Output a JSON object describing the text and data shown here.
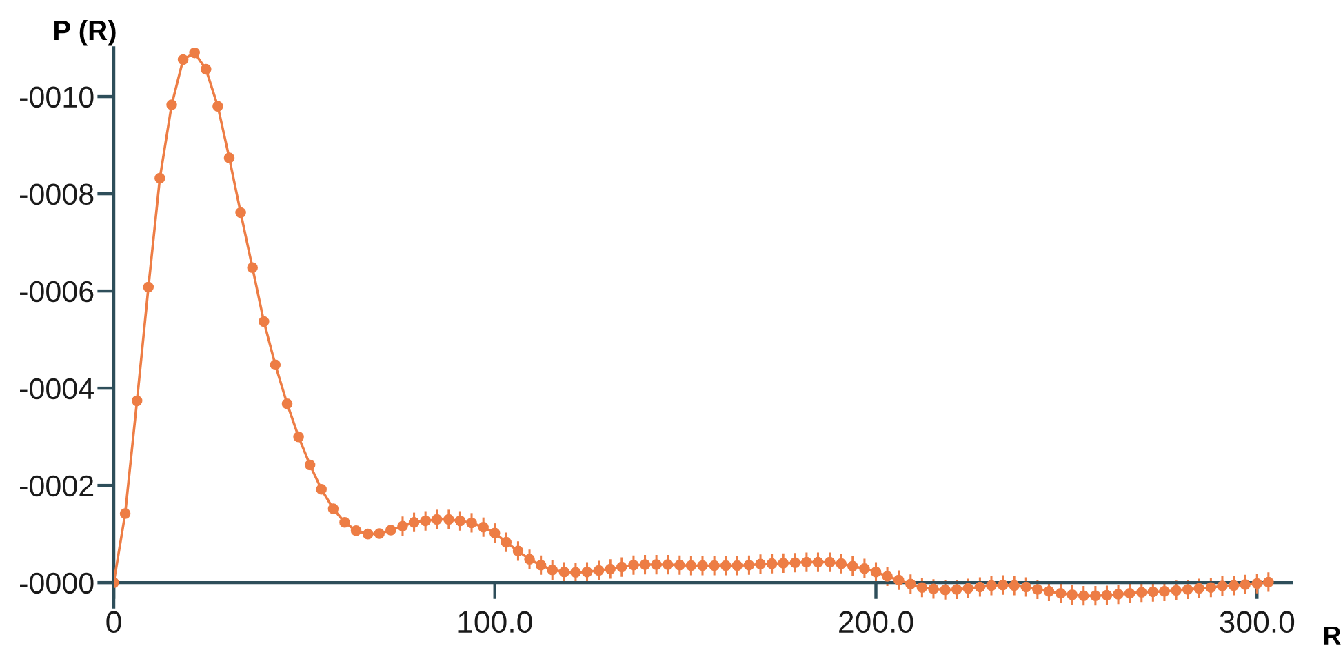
{
  "chart_data": {
    "type": "line",
    "xlabel": "R",
    "ylabel": "P (R)",
    "x": [
      0,
      3.0,
      6.1,
      9.1,
      12.1,
      15.2,
      18.2,
      21.2,
      24.2,
      27.3,
      30.3,
      33.3,
      36.4,
      39.4,
      42.4,
      45.5,
      48.5,
      51.5,
      54.5,
      57.6,
      60.6,
      63.6,
      66.7,
      69.7,
      72.7,
      75.8,
      78.8,
      81.8,
      84.8,
      87.9,
      90.9,
      93.9,
      97.0,
      100.0,
      103.0,
      106.1,
      109.1,
      112.1,
      115.1,
      118.2,
      121.2,
      124.2,
      127.3,
      130.3,
      133.3,
      136.4,
      139.4,
      142.4,
      145.4,
      148.5,
      151.5,
      154.5,
      157.6,
      160.6,
      163.6,
      166.7,
      169.7,
      172.7,
      175.7,
      178.8,
      181.8,
      184.8,
      187.9,
      190.9,
      193.9,
      197.0,
      200.0,
      203.0,
      206.0,
      209.1,
      212.1,
      215.1,
      218.2,
      221.2,
      224.2,
      227.3,
      230.3,
      233.3,
      236.3,
      239.4,
      242.4,
      245.4,
      248.5,
      251.5,
      254.5,
      257.6,
      260.6,
      263.6,
      266.6,
      269.7,
      272.7,
      275.7,
      278.8,
      281.8,
      284.8,
      287.9,
      290.9,
      293.9,
      296.9,
      300.0,
      303.0
    ],
    "series": [
      {
        "color": "#ed7d45",
        "values": [
          0,
          -1.42,
          -3.74,
          -6.08,
          -8.32,
          -9.83,
          -10.76,
          -10.9,
          -10.56,
          -9.8,
          -8.74,
          -7.61,
          -6.48,
          -5.37,
          -4.48,
          -3.68,
          -3.0,
          -2.42,
          -1.92,
          -1.52,
          -1.24,
          -1.07,
          -1.0,
          -1.01,
          -1.08,
          -1.16,
          -1.24,
          -1.27,
          -1.3,
          -1.3,
          -1.27,
          -1.23,
          -1.14,
          -1.02,
          -0.83,
          -0.65,
          -0.48,
          -0.36,
          -0.26,
          -0.22,
          -0.21,
          -0.22,
          -0.25,
          -0.28,
          -0.32,
          -0.36,
          -0.37,
          -0.37,
          -0.37,
          -0.36,
          -0.35,
          -0.35,
          -0.35,
          -0.35,
          -0.35,
          -0.36,
          -0.38,
          -0.39,
          -0.4,
          -0.41,
          -0.42,
          -0.42,
          -0.42,
          -0.39,
          -0.34,
          -0.29,
          -0.22,
          -0.13,
          -0.05,
          0.03,
          0.1,
          0.13,
          0.15,
          0.14,
          0.12,
          0.09,
          0.06,
          0.05,
          0.06,
          0.09,
          0.14,
          0.18,
          0.22,
          0.25,
          0.27,
          0.27,
          0.26,
          0.24,
          0.22,
          0.2,
          0.19,
          0.18,
          0.16,
          0.14,
          0.12,
          0.1,
          0.07,
          0.06,
          0.04,
          0.02,
          -0.01
        ],
        "errors": [
          null,
          null,
          null,
          null,
          null,
          null,
          null,
          null,
          null,
          null,
          null,
          null,
          null,
          null,
          null,
          null,
          null,
          null,
          null,
          null,
          null,
          0.1,
          0.1,
          0.1,
          0.1,
          0.2,
          0.2,
          0.2,
          0.2,
          0.2,
          0.2,
          0.2,
          0.2,
          0.2,
          0.2,
          0.2,
          0.2,
          0.2,
          0.2,
          0.2,
          0.2,
          0.2,
          0.2,
          0.2,
          0.2,
          0.2,
          0.2,
          0.2,
          0.2,
          0.2,
          0.2,
          0.2,
          0.2,
          0.2,
          0.2,
          0.2,
          0.2,
          0.2,
          0.2,
          0.2,
          0.2,
          0.2,
          0.2,
          0.2,
          0.2,
          0.2,
          0.2,
          0.2,
          0.2,
          0.2,
          0.2,
          0.2,
          0.2,
          0.2,
          0.2,
          0.2,
          0.2,
          0.2,
          0.2,
          0.2,
          0.2,
          0.2,
          0.2,
          0.2,
          0.2,
          0.2,
          0.2,
          0.2,
          0.2,
          0.2,
          0.2,
          0.2,
          0.2,
          0.2,
          0.2,
          0.2,
          0.2,
          0.2,
          0.2,
          0.2,
          0.2
        ]
      }
    ],
    "xlim": [
      0,
      309
    ],
    "ylim": [
      0.5,
      -11
    ],
    "xticks": [
      {
        "value": 0,
        "label": "0"
      },
      {
        "value": 100,
        "label": "100.0"
      },
      {
        "value": 200,
        "label": "200.0"
      },
      {
        "value": 300,
        "label": "300.0"
      }
    ],
    "yticks": [
      {
        "value": 0,
        "label": "-0000"
      },
      {
        "value": -2,
        "label": "-0002"
      },
      {
        "value": -4,
        "label": "-0004"
      },
      {
        "value": -6,
        "label": "-0006"
      },
      {
        "value": -8,
        "label": "-0008"
      },
      {
        "value": -10,
        "label": "-0010"
      }
    ],
    "marker": "circle",
    "line_style": "solid"
  }
}
